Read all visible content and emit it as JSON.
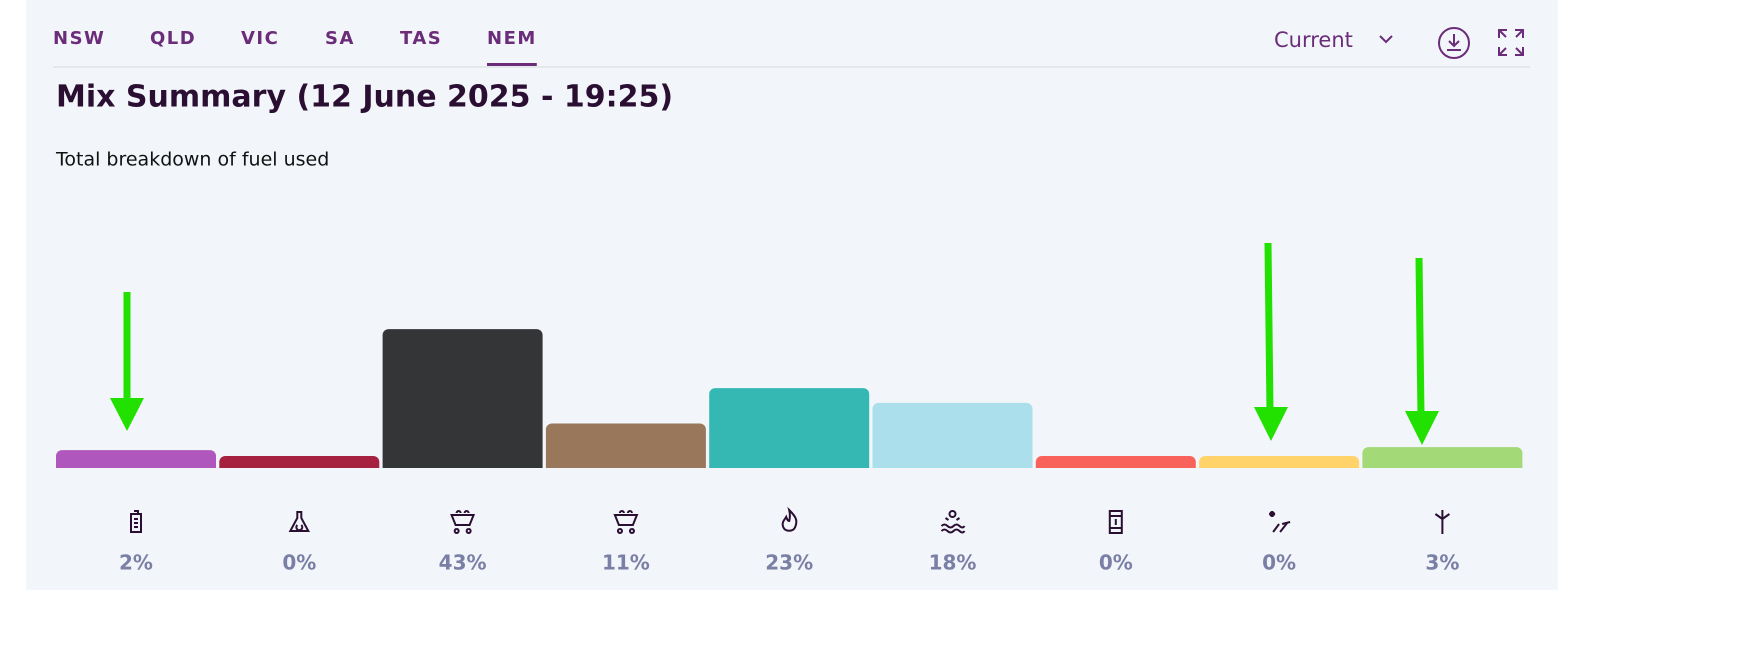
{
  "tabs": [
    "NSW",
    "QLD",
    "VIC",
    "SA",
    "TAS",
    "NEM"
  ],
  "dropdown": "Current",
  "chart_data": {
    "type": "bar",
    "title": "Mix Summary (12 June 2025 - 19:25)",
    "subtitle": "Total breakdown of fuel used",
    "values": [
      2,
      0,
      43,
      11,
      23,
      18,
      0,
      0,
      3
    ],
    "value_labels": [
      "2%",
      "0%",
      "43%",
      "11%",
      "23%",
      "18%",
      "0%",
      "0%",
      "3%"
    ],
    "colors": [
      "#b057bd",
      "#a6213f",
      "#333537",
      "#98775a",
      "#35b8b3",
      "#abdfec",
      "#f9625a",
      "#ffd36a",
      "#a3d977"
    ]
  }
}
